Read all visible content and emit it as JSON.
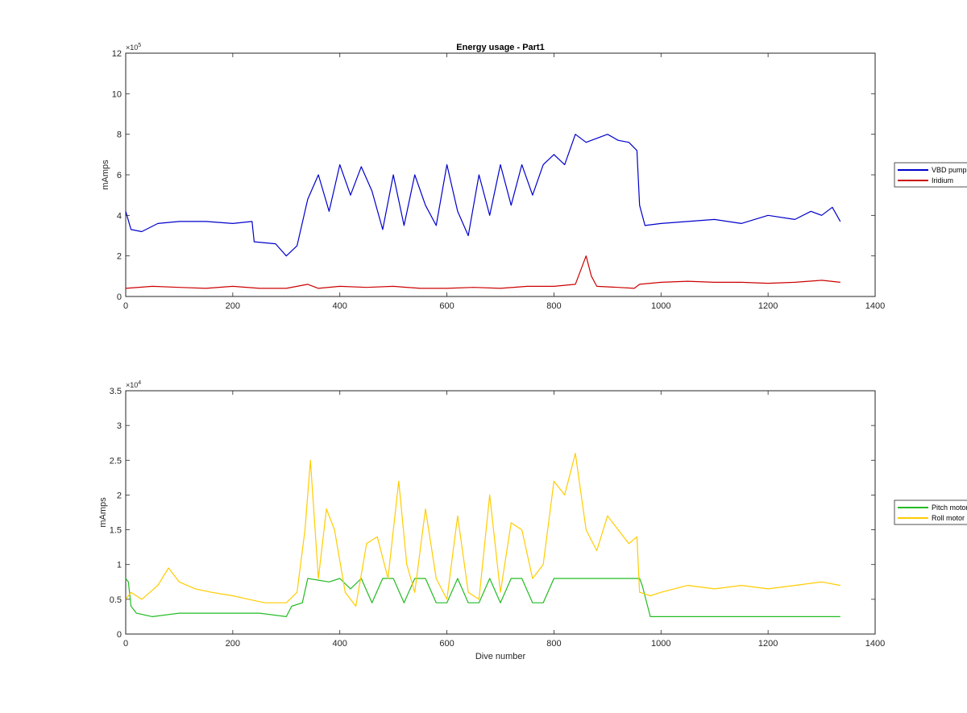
{
  "chart_data": [
    {
      "type": "line",
      "title": "Energy usage - Part1",
      "xlabel": "",
      "ylabel": "mAmps",
      "xlim": [
        0,
        1400
      ],
      "ylim": [
        0,
        1200000
      ],
      "xticks": [
        0,
        200,
        400,
        600,
        800,
        1000,
        1200,
        1400
      ],
      "yticks": [
        0,
        200000,
        400000,
        600000,
        800000,
        1000000,
        1200000
      ],
      "x_tick_labels": [
        "0",
        "200",
        "400",
        "600",
        "800",
        "1000",
        "1200",
        "1400"
      ],
      "y_tick_labels": [
        "0",
        "2",
        "4",
        "6",
        "8",
        "10",
        "12"
      ],
      "y_exponent": {
        "base": "×10",
        "power": "5"
      },
      "legend_position": "right",
      "grid": false,
      "series": [
        {
          "name": "VBD pump",
          "color": "#0000cc",
          "x": [
            0,
            10,
            30,
            60,
            100,
            150,
            200,
            236,
            240,
            280,
            290,
            300,
            320,
            340,
            360,
            380,
            400,
            420,
            440,
            460,
            480,
            500,
            520,
            540,
            560,
            580,
            600,
            620,
            640,
            660,
            680,
            700,
            720,
            740,
            760,
            780,
            800,
            820,
            840,
            860,
            880,
            900,
            920,
            940,
            955,
            960,
            970,
            1000,
            1050,
            1100,
            1150,
            1200,
            1250,
            1280,
            1300,
            1320,
            1335
          ],
          "y": [
            420000,
            330000,
            320000,
            360000,
            370000,
            370000,
            360000,
            370000,
            270000,
            260000,
            230000,
            200000,
            250000,
            480000,
            600000,
            420000,
            650000,
            500000,
            640000,
            520000,
            330000,
            600000,
            350000,
            600000,
            450000,
            350000,
            650000,
            420000,
            300000,
            600000,
            400000,
            650000,
            450000,
            650000,
            500000,
            650000,
            700000,
            650000,
            800000,
            760000,
            780000,
            800000,
            770000,
            760000,
            720000,
            450000,
            350000,
            360000,
            370000,
            380000,
            360000,
            400000,
            380000,
            420000,
            400000,
            440000,
            370000
          ]
        },
        {
          "name": "Iridium",
          "color": "#cc0000",
          "x": [
            0,
            50,
            100,
            150,
            200,
            250,
            300,
            340,
            360,
            400,
            450,
            500,
            550,
            600,
            650,
            700,
            750,
            800,
            840,
            860,
            870,
            880,
            920,
            950,
            960,
            1000,
            1050,
            1100,
            1150,
            1200,
            1250,
            1300,
            1335
          ],
          "y": [
            40000,
            50000,
            45000,
            40000,
            50000,
            40000,
            40000,
            60000,
            40000,
            50000,
            45000,
            50000,
            40000,
            40000,
            45000,
            40000,
            50000,
            50000,
            60000,
            200000,
            100000,
            50000,
            45000,
            40000,
            60000,
            70000,
            75000,
            70000,
            70000,
            65000,
            70000,
            80000,
            70000
          ]
        }
      ]
    },
    {
      "type": "line",
      "title": "",
      "xlabel": "Dive number",
      "ylabel": "mAmps",
      "xlim": [
        0,
        1400
      ],
      "ylim": [
        0,
        35000
      ],
      "xticks": [
        0,
        200,
        400,
        600,
        800,
        1000,
        1200,
        1400
      ],
      "yticks": [
        0,
        5000,
        10000,
        15000,
        20000,
        25000,
        30000,
        35000
      ],
      "x_tick_labels": [
        "0",
        "200",
        "400",
        "600",
        "800",
        "1000",
        "1200",
        "1400"
      ],
      "y_tick_labels": [
        "0",
        "0.5",
        "1",
        "1.5",
        "2",
        "2.5",
        "3",
        "3.5"
      ],
      "y_exponent": {
        "base": "×10",
        "power": "4"
      },
      "legend_position": "right",
      "grid": false,
      "series": [
        {
          "name": "Pitch motor",
          "color": "#22bb22",
          "x": [
            0,
            5,
            10,
            20,
            50,
            100,
            150,
            200,
            250,
            300,
            310,
            330,
            340,
            380,
            400,
            420,
            440,
            460,
            480,
            500,
            520,
            540,
            560,
            580,
            600,
            620,
            640,
            660,
            680,
            700,
            720,
            740,
            760,
            780,
            800,
            820,
            840,
            860,
            880,
            900,
            920,
            940,
            960,
            965,
            980,
            1000,
            1050,
            1100,
            1150,
            1200,
            1250,
            1300,
            1335
          ],
          "y": [
            8000,
            7500,
            4000,
            3000,
            2500,
            3000,
            3000,
            3000,
            3000,
            2500,
            4000,
            4500,
            8000,
            7500,
            8000,
            6500,
            8000,
            4500,
            8000,
            8000,
            4500,
            8000,
            8000,
            4500,
            4500,
            8000,
            4500,
            4500,
            8000,
            4500,
            8000,
            8000,
            4500,
            4500,
            8000,
            8000,
            8000,
            8000,
            8000,
            8000,
            8000,
            8000,
            8000,
            7000,
            2500,
            2500,
            2500,
            2500,
            2500,
            2500,
            2500,
            2500,
            2500
          ]
        },
        {
          "name": "Roll motor",
          "color": "#ffcc00",
          "x": [
            0,
            10,
            30,
            60,
            80,
            100,
            130,
            160,
            200,
            230,
            260,
            300,
            320,
            335,
            345,
            360,
            375,
            390,
            410,
            430,
            450,
            470,
            490,
            510,
            525,
            540,
            560,
            580,
            600,
            620,
            640,
            660,
            680,
            700,
            720,
            740,
            760,
            780,
            800,
            820,
            840,
            860,
            880,
            900,
            920,
            940,
            955,
            960,
            980,
            1000,
            1050,
            1100,
            1150,
            1200,
            1250,
            1300,
            1335
          ],
          "y": [
            5000,
            6000,
            5000,
            7000,
            9500,
            7500,
            6500,
            6000,
            5500,
            5000,
            4500,
            4500,
            6000,
            15000,
            25000,
            8000,
            18000,
            15000,
            6000,
            4000,
            13000,
            14000,
            8000,
            22000,
            10000,
            6000,
            18000,
            8000,
            5000,
            17000,
            6000,
            5000,
            20000,
            6000,
            16000,
            15000,
            8000,
            10000,
            22000,
            20000,
            26000,
            15000,
            12000,
            17000,
            15000,
            13000,
            14000,
            6000,
            5500,
            6000,
            7000,
            6500,
            7000,
            6500,
            7000,
            7500,
            7000
          ]
        }
      ]
    }
  ]
}
